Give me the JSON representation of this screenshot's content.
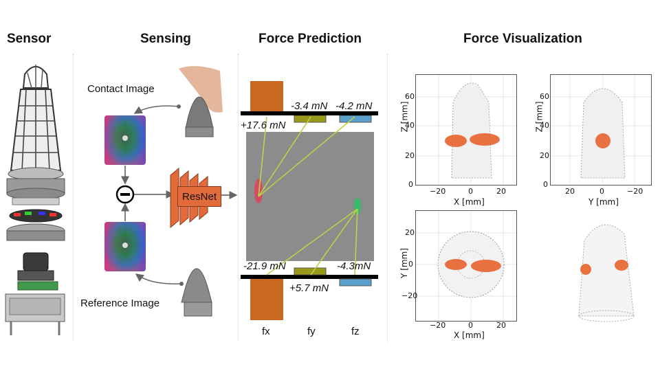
{
  "sections": {
    "sensor": "Sensor",
    "sensing": "Sensing",
    "prediction": "Force Prediction",
    "visualization": "Force Visualization"
  },
  "sensing": {
    "contact_label": "Contact Image",
    "reference_label": "Reference Image",
    "model_label": "ResNet"
  },
  "prediction": {
    "top_fx": "+17.6 mN",
    "top_fy": "-3.4 mN",
    "top_fz": "-4.2 mN",
    "bottom_fx": "-21.9 mN",
    "bottom_fy": "+5.7 mN",
    "bottom_fz": "-4.3mN",
    "axis_fx": "fx",
    "axis_fy": "fy",
    "axis_fz": "fz",
    "colors": {
      "fx": "#c8691f",
      "fy": "#9a9a1a",
      "fz": "#5b9fcc"
    }
  },
  "plots": {
    "xz": {
      "xlabel": "X [mm]",
      "ylabel": "Z [mm]",
      "xticks": [
        "−20",
        "0",
        "20"
      ],
      "yticks": [
        "60",
        "40",
        "20",
        "0"
      ]
    },
    "yz": {
      "xlabel": "Y [mm]",
      "ylabel": "Z [mm]",
      "xticks": [
        "20",
        "0",
        "−20"
      ],
      "yticks": [
        "60",
        "40",
        "20",
        "0"
      ]
    },
    "xy": {
      "xlabel": "X [mm]",
      "ylabel": "Y [mm]",
      "xticks": [
        "−20",
        "0",
        "20"
      ],
      "yticks": [
        "20",
        "0",
        "−20"
      ]
    }
  },
  "icons": {
    "subtract": "minus-circle-icon"
  }
}
